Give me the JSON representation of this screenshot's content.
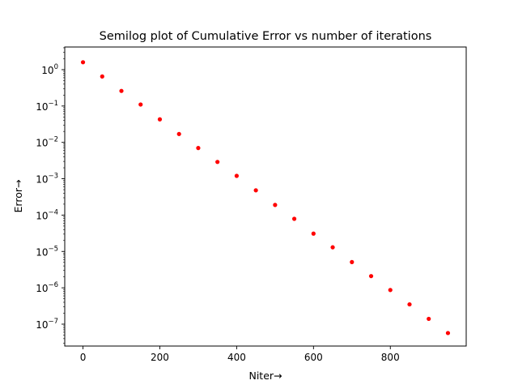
{
  "chart_data": {
    "type": "scatter",
    "title": "Semilog plot of Cumulative Error vs number of iterations",
    "xlabel": "Niter→",
    "ylabel": "Error→",
    "yscale": "log",
    "grid": false,
    "xlim": [
      -47.5,
      997.5
    ],
    "ylim": [
      2.5e-08,
      4.2
    ],
    "xticks": [
      0,
      200,
      400,
      600,
      800
    ],
    "xtick_labels": [
      "0",
      "200",
      "400",
      "600",
      "800"
    ],
    "yticks": [
      1,
      0.1,
      0.01,
      0.001,
      0.0001,
      1e-05,
      1e-06,
      1e-07
    ],
    "ytick_labels": [
      {
        "base": "10",
        "exp": "0"
      },
      {
        "base": "10",
        "exp": "−1"
      },
      {
        "base": "10",
        "exp": "−2"
      },
      {
        "base": "10",
        "exp": "−3"
      },
      {
        "base": "10",
        "exp": "−4"
      },
      {
        "base": "10",
        "exp": "−5"
      },
      {
        "base": "10",
        "exp": "−6"
      },
      {
        "base": "10",
        "exp": "−7"
      }
    ],
    "marker_color": "#ff0000",
    "series": [
      {
        "x": [
          0,
          50,
          100,
          150,
          200,
          250,
          300,
          350,
          400,
          450,
          500,
          550,
          600,
          650,
          700,
          750,
          800,
          850,
          900,
          950
        ],
        "y": [
          1.6,
          0.65,
          0.26,
          0.11,
          0.043,
          0.017,
          0.007,
          0.0029,
          0.0012,
          0.00048,
          0.00019,
          7.9e-05,
          3.1e-05,
          1.3e-05,
          5.1e-06,
          2.1e-06,
          8.7e-07,
          3.5e-07,
          1.4e-07,
          5.7e-08
        ]
      }
    ]
  }
}
